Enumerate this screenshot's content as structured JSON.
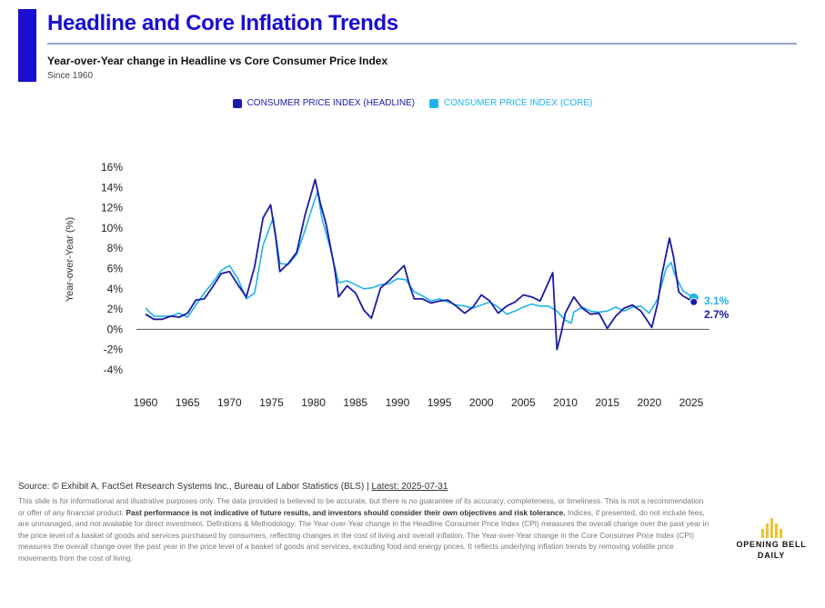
{
  "header": {
    "title": "Headline and Core Inflation Trends",
    "subtitle": "Year-over-Year change in Headline vs Core Consumer Price Index",
    "since": "Since 1960"
  },
  "colors": {
    "accent": "#1a0ecf",
    "headline": "#1a1aa6",
    "core": "#1eb4e8",
    "logo": "#f2c230"
  },
  "chart_data": {
    "type": "line",
    "ylabel": "Year-over-Year (%)",
    "xlabel": "",
    "ylim": [
      -4,
      16
    ],
    "xlim": [
      1960,
      2025
    ],
    "y_ticks": [
      "16%",
      "14%",
      "12%",
      "10%",
      "8%",
      "6%",
      "4%",
      "2%",
      "0%",
      "-2%",
      "-4%"
    ],
    "y_tick_values": [
      16,
      14,
      12,
      10,
      8,
      6,
      4,
      2,
      0,
      -2,
      -4
    ],
    "x_ticks": [
      "1960",
      "1965",
      "1970",
      "1975",
      "1980",
      "1985",
      "1990",
      "1995",
      "2000",
      "2005",
      "2010",
      "2015",
      "2020",
      "2025"
    ],
    "x_tick_values": [
      1960,
      1965,
      1970,
      1975,
      1980,
      1985,
      1990,
      1995,
      2000,
      2005,
      2010,
      2015,
      2020,
      2025
    ],
    "grid": false,
    "legend": "top-center",
    "series": [
      {
        "name": "CONSUMER PRICE INDEX (HEADLINE)",
        "color": "#1a1aa6",
        "end_label": "2.7%",
        "x": [
          1960,
          1961,
          1962,
          1963,
          1964,
          1965,
          1966,
          1967,
          1968,
          1969,
          1970,
          1971,
          1972,
          1973,
          1974,
          1974.9,
          1975.5,
          1976,
          1977,
          1978,
          1979,
          1979.6,
          1980.2,
          1980.8,
          1981.5,
          1982.5,
          1983,
          1984,
          1985,
          1986,
          1986.9,
          1988,
          1989,
          1990.8,
          1991.5,
          1992,
          1993,
          1994,
          1995,
          1996,
          1997,
          1998,
          1999,
          2000,
          2001,
          2002,
          2003,
          2004,
          2005,
          2006,
          2007,
          2008.5,
          2009,
          2009.5,
          2010,
          2011,
          2012,
          2013,
          2014,
          2015,
          2016,
          2017,
          2018,
          2019,
          2020.3,
          2021,
          2021.5,
          2022.4,
          2022.9,
          2023.5,
          2024,
          2025.3
        ],
        "y": [
          1.5,
          1.0,
          1.0,
          1.3,
          1.2,
          1.6,
          2.9,
          3.0,
          4.2,
          5.5,
          5.7,
          4.4,
          3.2,
          6.2,
          11.0,
          12.3,
          9.1,
          5.7,
          6.5,
          7.6,
          11.3,
          13.0,
          14.8,
          12.5,
          10.4,
          6.1,
          3.2,
          4.3,
          3.6,
          1.9,
          1.1,
          4.1,
          4.8,
          6.3,
          4.2,
          3.0,
          3.0,
          2.6,
          2.8,
          2.9,
          2.3,
          1.6,
          2.2,
          3.4,
          2.8,
          1.6,
          2.3,
          2.7,
          3.4,
          3.2,
          2.8,
          5.6,
          -2.0,
          -0.4,
          1.6,
          3.2,
          2.1,
          1.5,
          1.6,
          0.1,
          1.3,
          2.1,
          2.4,
          1.8,
          0.2,
          2.6,
          5.4,
          9.0,
          7.1,
          3.7,
          3.3,
          2.7
        ]
      },
      {
        "name": "CONSUMER PRICE INDEX (CORE)",
        "color": "#1eb4e8",
        "end_label": "3.1%",
        "x": [
          1960,
          1961,
          1962,
          1963,
          1964,
          1965,
          1966,
          1967,
          1968,
          1969,
          1970,
          1971,
          1972,
          1973,
          1974,
          1975.2,
          1976,
          1977,
          1978,
          1979,
          1980,
          1980.5,
          1981,
          1982,
          1983,
          1984,
          1985,
          1986,
          1987,
          1988,
          1989,
          1990,
          1991,
          1992,
          1993,
          1994,
          1995,
          1996,
          1997,
          1998,
          1999,
          2000,
          2001,
          2002,
          2003,
          2004,
          2005,
          2006,
          2007,
          2008,
          2009,
          2010,
          2010.7,
          2011,
          2012,
          2013,
          2014,
          2015,
          2016,
          2017,
          2018,
          2019,
          2020,
          2021,
          2022,
          2022.6,
          2023,
          2024,
          2025.3
        ],
        "y": [
          2.1,
          1.3,
          1.3,
          1.3,
          1.6,
          1.2,
          2.4,
          3.6,
          4.6,
          5.8,
          6.3,
          5.0,
          3.0,
          3.6,
          8.3,
          11.0,
          6.5,
          6.4,
          7.4,
          9.8,
          12.4,
          13.6,
          11.0,
          8.0,
          4.6,
          4.8,
          4.4,
          4.0,
          4.1,
          4.4,
          4.5,
          5.0,
          4.9,
          3.7,
          3.3,
          2.8,
          3.0,
          2.7,
          2.4,
          2.3,
          2.1,
          2.4,
          2.7,
          2.2,
          1.5,
          1.8,
          2.2,
          2.5,
          2.3,
          2.3,
          1.8,
          0.9,
          0.6,
          1.7,
          2.2,
          1.8,
          1.7,
          1.8,
          2.2,
          1.8,
          2.2,
          2.3,
          1.6,
          3.0,
          6.0,
          6.6,
          5.5,
          3.8,
          3.1
        ]
      }
    ]
  },
  "footer": {
    "source_prefix": "Source: © Exhibit A, FactSet Research Systems Inc., Bureau of Labor Statistics (BLS) | ",
    "latest": "Latest: 2025-07-31",
    "disclaimer_1": "This slide is for informational and illustrative purposes only. The data provided is believed to be accurate, but there is no guarantee of its accuracy, completeness, or timeliness. This is not a recommendation or offer of any financial product. ",
    "disclaimer_bold": "Past performance is not indicative of future results, and investors should consider their own objectives and risk tolerance.",
    "disclaimer_2": " Indices, if presented, do not include fees, are unmanaged, and not available for direct investment. Definitions & Methodology: The Year-over-Year change in the Headline Consumer Price Index (CPI) measures the overall change over the past year in the price level of a basket of goods and services purchased by consumers, reflecting changes in the cost of living and overall inflation. The Year-over-Year change in the Core Consumer Price Index (CPI) measures the overall change over the past year in the price level of a basket of goods and services, excluding food and energy prices. It reflects underlying inflation trends by removing volatile price movements from the cost of living."
  },
  "logo": {
    "line1": "OPENING BELL",
    "line2": "DAILY",
    "icon": "bar-chart-icon"
  }
}
